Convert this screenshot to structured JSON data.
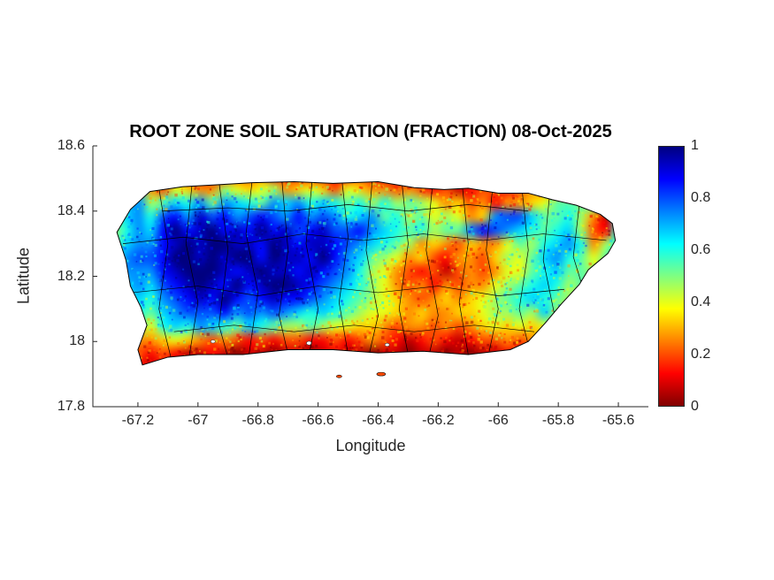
{
  "axis_color": "#262626",
  "chart_data": {
    "type": "heatmap",
    "title": "ROOT ZONE SOIL SATURATION (FRACTION) 08-Oct-2025",
    "xlabel": "Longitude",
    "ylabel": "Latitude",
    "xlim": [
      -67.35,
      -65.5
    ],
    "ylim": [
      17.8,
      18.6
    ],
    "xticks": [
      -67.2,
      -67,
      -66.8,
      -66.6,
      -66.4,
      -66.2,
      -66,
      -65.8,
      -65.6
    ],
    "xtick_labels": [
      "-67.2",
      "-67",
      "-66.8",
      "-66.6",
      "-66.4",
      "-66.2",
      "-66",
      "-65.8",
      "-65.6"
    ],
    "yticks": [
      18.6,
      18.4,
      18.2,
      18,
      17.8
    ],
    "ytick_labels": [
      "18.6",
      "18.4",
      "18.2",
      "18",
      "17.8"
    ],
    "legend_position": "right-colorbar",
    "grid_on": false,
    "colorbar": {
      "ticks": [
        1,
        0.8,
        0.6,
        0.4,
        0.2,
        0
      ],
      "tick_labels": [
        "1",
        "0.8",
        "0.6",
        "0.4",
        "0.2",
        "0"
      ],
      "colormap": "jet-reversed",
      "gradient_stops": [
        {
          "v": 0,
          "color": "#800000"
        },
        {
          "v": 0.125,
          "color": "#ff0000"
        },
        {
          "v": 0.25,
          "color": "#ff8000"
        },
        {
          "v": 0.375,
          "color": "#ffff00"
        },
        {
          "v": 0.5,
          "color": "#80ff80"
        },
        {
          "v": 0.625,
          "color": "#00ffff"
        },
        {
          "v": 0.75,
          "color": "#0080ff"
        },
        {
          "v": 0.875,
          "color": "#0000ff"
        },
        {
          "v": 1,
          "color": "#000080"
        }
      ]
    },
    "grid": {
      "lon_min": -67.3,
      "lon_max": -65.58,
      "lat_min": 17.9,
      "lat_max": 18.53,
      "cols": 42,
      "rows": 15,
      "encoding": "each char is hex digit 0-f mapped to saturation value 0-1; rows ordered north to south",
      "values": [
        "999123321233423221223211233214321233233333",
        "99a436544765674565365443432312332344544444",
        "9ab78a9b8ba98bab9a989797876453424456888889",
        "8ab9cdbecdbcdcbdbcb9ab897867645bcca8897419",
        "79badfdefdedfdecdeccdba989788bdcba989a7329",
        "8abbdefeffeedfedeedcba98745435446879ab9479",
        "9bccdffefeffdfeedfdba87645324435768ab98689",
        "abbbdefffedefeededcb9764323134346689a88788",
        "9abacdefedfdeffedcba976434243446789a978878",
        "89a9bcdedfdcdeddcba987654345456789a9877777",
        "7898abcccdbcbcba9a98766545445567787a766666",
        "67869a9ba98a987787665543443434565656555555",
        "444456543432323322323432123212334344344444",
        "233232112101101101211011011010112212233333",
        "222121011011010110110101101101011011022222"
      ]
    },
    "island_outline": [
      [
        -67.16,
        18.46
      ],
      [
        -67.05,
        18.475
      ],
      [
        -66.95,
        18.48
      ],
      [
        -66.82,
        18.487
      ],
      [
        -66.68,
        18.49
      ],
      [
        -66.55,
        18.485
      ],
      [
        -66.4,
        18.49
      ],
      [
        -66.28,
        18.472
      ],
      [
        -66.18,
        18.466
      ],
      [
        -66.1,
        18.47
      ],
      [
        -66.0,
        18.455
      ],
      [
        -65.9,
        18.455
      ],
      [
        -65.82,
        18.435
      ],
      [
        -65.74,
        18.418
      ],
      [
        -65.66,
        18.39
      ],
      [
        -65.62,
        18.362
      ],
      [
        -65.61,
        18.31
      ],
      [
        -65.635,
        18.27
      ],
      [
        -65.7,
        18.22
      ],
      [
        -65.73,
        18.175
      ],
      [
        -65.79,
        18.115
      ],
      [
        -65.845,
        18.055
      ],
      [
        -65.9,
        18.0
      ],
      [
        -65.96,
        17.975
      ],
      [
        -66.1,
        17.96
      ],
      [
        -66.25,
        17.97
      ],
      [
        -66.4,
        17.965
      ],
      [
        -66.55,
        17.975
      ],
      [
        -66.7,
        17.975
      ],
      [
        -66.85,
        17.96
      ],
      [
        -67.0,
        17.96
      ],
      [
        -67.1,
        17.952
      ],
      [
        -67.185,
        17.928
      ],
      [
        -67.2,
        17.975
      ],
      [
        -67.17,
        18.05
      ],
      [
        -67.19,
        18.105
      ],
      [
        -67.225,
        18.17
      ],
      [
        -67.24,
        18.25
      ],
      [
        -67.27,
        18.335
      ],
      [
        -67.225,
        18.405
      ]
    ],
    "boundary_lines": [
      [
        [
          -67.13,
          18.47
        ],
        [
          -67.1,
          18.3
        ],
        [
          -67.13,
          18.1
        ],
        [
          -67.09,
          17.95
        ]
      ],
      [
        [
          -67.02,
          18.48
        ],
        [
          -67.04,
          18.3
        ],
        [
          -67.0,
          18.12
        ],
        [
          -67.03,
          17.95
        ]
      ],
      [
        [
          -66.93,
          18.49
        ],
        [
          -66.9,
          18.28
        ],
        [
          -66.93,
          18.05
        ],
        [
          -66.9,
          17.95
        ]
      ],
      [
        [
          -66.82,
          18.49
        ],
        [
          -66.84,
          18.33
        ],
        [
          -66.8,
          18.15
        ],
        [
          -66.83,
          17.96
        ]
      ],
      [
        [
          -66.72,
          18.49
        ],
        [
          -66.7,
          18.28
        ],
        [
          -66.73,
          18.08
        ],
        [
          -66.7,
          17.96
        ]
      ],
      [
        [
          -66.62,
          18.49
        ],
        [
          -66.64,
          18.3
        ],
        [
          -66.6,
          18.1
        ],
        [
          -66.63,
          17.96
        ]
      ],
      [
        [
          -66.52,
          18.49
        ],
        [
          -66.5,
          18.32
        ],
        [
          -66.53,
          18.12
        ],
        [
          -66.5,
          17.96
        ]
      ],
      [
        [
          -66.42,
          18.49
        ],
        [
          -66.44,
          18.28
        ],
        [
          -66.4,
          18.08
        ],
        [
          -66.43,
          17.96
        ]
      ],
      [
        [
          -66.32,
          18.48
        ],
        [
          -66.3,
          18.3
        ],
        [
          -66.33,
          18.1
        ],
        [
          -66.3,
          17.96
        ]
      ],
      [
        [
          -66.22,
          18.47
        ],
        [
          -66.24,
          18.28
        ],
        [
          -66.2,
          18.08
        ],
        [
          -66.23,
          17.96
        ]
      ],
      [
        [
          -66.12,
          18.48
        ],
        [
          -66.1,
          18.3
        ],
        [
          -66.13,
          18.12
        ],
        [
          -66.1,
          17.96
        ]
      ],
      [
        [
          -66.02,
          18.46
        ],
        [
          -66.04,
          18.28
        ],
        [
          -66.0,
          18.1
        ],
        [
          -66.03,
          17.97
        ]
      ],
      [
        [
          -65.92,
          18.46
        ],
        [
          -65.9,
          18.28
        ],
        [
          -65.93,
          18.1
        ],
        [
          -65.9,
          17.99
        ]
      ],
      [
        [
          -65.83,
          18.44
        ],
        [
          -65.85,
          18.25
        ],
        [
          -65.81,
          18.07
        ]
      ],
      [
        [
          -65.73,
          18.42
        ],
        [
          -65.75,
          18.26
        ],
        [
          -65.71,
          18.14
        ]
      ],
      [
        [
          -67.25,
          18.3
        ],
        [
          -67.05,
          18.32
        ],
        [
          -66.85,
          18.3
        ],
        [
          -66.65,
          18.33
        ],
        [
          -66.45,
          18.31
        ],
        [
          -66.25,
          18.33
        ],
        [
          -66.05,
          18.31
        ],
        [
          -65.85,
          18.33
        ],
        [
          -65.64,
          18.31
        ]
      ],
      [
        [
          -67.22,
          18.15
        ],
        [
          -67.0,
          18.17
        ],
        [
          -66.8,
          18.14
        ],
        [
          -66.6,
          18.17
        ],
        [
          -66.4,
          18.15
        ],
        [
          -66.2,
          18.17
        ],
        [
          -66.0,
          18.14
        ],
        [
          -65.78,
          18.16
        ]
      ],
      [
        [
          -67.12,
          18.4
        ],
        [
          -66.9,
          18.41
        ],
        [
          -66.7,
          18.4
        ],
        [
          -66.5,
          18.42
        ],
        [
          -66.3,
          18.4
        ],
        [
          -66.1,
          18.42
        ],
        [
          -65.9,
          18.4
        ]
      ],
      [
        [
          -67.08,
          18.03
        ],
        [
          -66.88,
          18.05
        ],
        [
          -66.68,
          18.03
        ],
        [
          -66.48,
          18.05
        ],
        [
          -66.28,
          18.03
        ],
        [
          -66.08,
          18.05
        ],
        [
          -65.88,
          18.03
        ]
      ]
    ],
    "islets": [
      [
        -66.39,
        17.9,
        5,
        2
      ],
      [
        -66.53,
        17.893,
        3,
        1.5
      ]
    ],
    "holes": [
      [
        -66.63,
        17.995,
        3
      ],
      [
        -66.37,
        17.99,
        2.5
      ],
      [
        -66.95,
        18.0,
        2.5
      ]
    ]
  }
}
